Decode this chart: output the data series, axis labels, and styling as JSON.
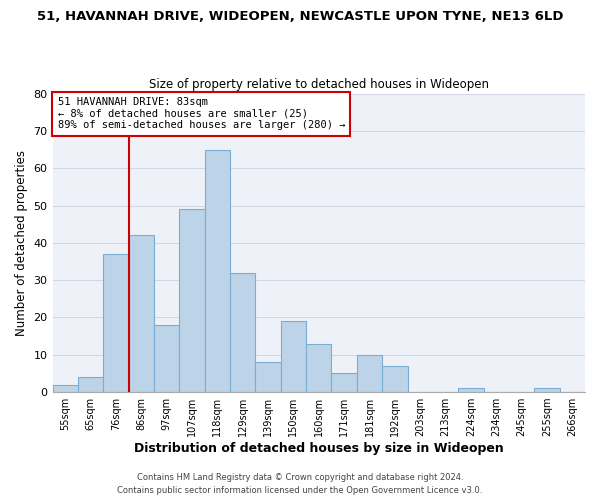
{
  "title": "51, HAVANNAH DRIVE, WIDEOPEN, NEWCASTLE UPON TYNE, NE13 6LD",
  "subtitle": "Size of property relative to detached houses in Wideopen",
  "xlabel": "Distribution of detached houses by size in Wideopen",
  "ylabel": "Number of detached properties",
  "bin_labels": [
    "55sqm",
    "65sqm",
    "76sqm",
    "86sqm",
    "97sqm",
    "107sqm",
    "118sqm",
    "129sqm",
    "139sqm",
    "150sqm",
    "160sqm",
    "171sqm",
    "181sqm",
    "192sqm",
    "203sqm",
    "213sqm",
    "224sqm",
    "234sqm",
    "245sqm",
    "255sqm",
    "266sqm"
  ],
  "bar_heights": [
    2,
    4,
    37,
    42,
    18,
    49,
    65,
    32,
    8,
    19,
    13,
    5,
    10,
    7,
    0,
    0,
    1,
    0,
    0,
    1,
    0
  ],
  "bar_color": "#bdd4e8",
  "bar_edge_color": "#7aadd4",
  "vline_color": "#cc0000",
  "ylim": [
    0,
    80
  ],
  "yticks": [
    0,
    10,
    20,
    30,
    40,
    50,
    60,
    70,
    80
  ],
  "annotation_title": "51 HAVANNAH DRIVE: 83sqm",
  "annotation_line1": "← 8% of detached houses are smaller (25)",
  "annotation_line2": "89% of semi-detached houses are larger (280) →",
  "annotation_box_color": "#ffffff",
  "annotation_box_edge": "#cc0000",
  "grid_color": "#d0d8e8",
  "bg_color": "#eef2f8",
  "footer1": "Contains HM Land Registry data © Crown copyright and database right 2024.",
  "footer2": "Contains public sector information licensed under the Open Government Licence v3.0."
}
